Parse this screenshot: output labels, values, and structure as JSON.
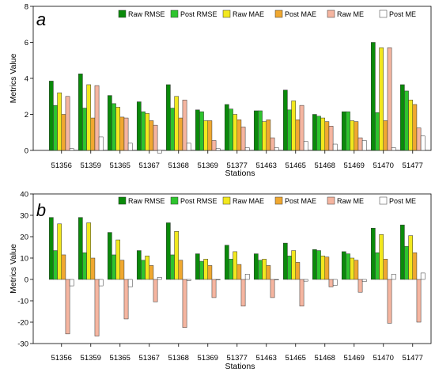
{
  "chart_data": [
    {
      "type": "bar",
      "panel_label": "a",
      "categories": [
        "51356",
        "51359",
        "51365",
        "51367",
        "51368",
        "51369",
        "51377",
        "51463",
        "51465",
        "51468",
        "51469",
        "51470",
        "51477"
      ],
      "xlabel": "Stations",
      "ylabel": "Metrics Value",
      "ylim": [
        0,
        8
      ],
      "yticks": [
        0,
        2,
        4,
        6,
        8
      ],
      "legend_position": "top-right",
      "grid": false,
      "series": [
        {
          "name": "Raw RMSE",
          "color": "#0a8a0a",
          "values": [
            3.85,
            4.25,
            3.05,
            2.7,
            3.65,
            2.25,
            2.55,
            2.2,
            3.35,
            2.0,
            2.15,
            6.0,
            3.65
          ]
        },
        {
          "name": "Post RMSE",
          "color": "#2ec42e",
          "values": [
            2.5,
            2.35,
            2.6,
            2.15,
            2.35,
            2.15,
            2.3,
            2.2,
            2.25,
            1.9,
            2.15,
            2.1,
            3.3
          ]
        },
        {
          "name": "Raw MAE",
          "color": "#f2e81e",
          "values": [
            3.2,
            3.65,
            2.4,
            2.05,
            3.0,
            1.65,
            2.0,
            1.6,
            2.75,
            1.8,
            1.65,
            5.7,
            2.8
          ]
        },
        {
          "name": "Post MAE",
          "color": "#f0a830",
          "values": [
            2.0,
            1.8,
            1.85,
            1.65,
            1.8,
            1.65,
            1.7,
            1.7,
            1.7,
            1.6,
            1.6,
            1.65,
            2.55
          ]
        },
        {
          "name": "Raw ME",
          "color": "#f5b5a0",
          "values": [
            3.0,
            3.6,
            1.8,
            1.4,
            2.8,
            0.55,
            1.3,
            0.7,
            2.5,
            1.35,
            0.7,
            5.7,
            1.25
          ]
        },
        {
          "name": "Post ME",
          "color": "#ffffff",
          "values": [
            0.1,
            0.75,
            0.4,
            -0.15,
            0.4,
            0.1,
            0.15,
            0.15,
            0.5,
            0.35,
            0.55,
            0.15,
            0.8
          ]
        }
      ]
    },
    {
      "type": "bar",
      "panel_label": "b",
      "categories": [
        "51356",
        "51359",
        "51365",
        "51367",
        "51368",
        "51369",
        "51377",
        "51463",
        "51465",
        "51468",
        "51469",
        "51470",
        "51477"
      ],
      "xlabel": "Stations",
      "ylabel": "Metrics Value",
      "ylim": [
        -30,
        40
      ],
      "yticks": [
        -30,
        -20,
        -10,
        0,
        10,
        20,
        30,
        40
      ],
      "legend_position": "top-right",
      "grid": false,
      "series": [
        {
          "name": "Raw RMSE",
          "color": "#0a8a0a",
          "values": [
            29,
            29,
            22,
            13.5,
            26.5,
            12,
            16,
            12,
            17,
            14,
            13,
            24,
            25.5
          ]
        },
        {
          "name": "Post RMSE",
          "color": "#2ec42e",
          "values": [
            13.5,
            12.5,
            11.5,
            9,
            11.5,
            8.5,
            9.5,
            9,
            11,
            13.5,
            12,
            12.5,
            15.5
          ]
        },
        {
          "name": "Raw MAE",
          "color": "#f2e81e",
          "values": [
            26,
            26.5,
            18.5,
            11,
            22.5,
            9.5,
            13,
            9.5,
            13.5,
            11,
            10,
            21,
            20.5
          ]
        },
        {
          "name": "Post MAE",
          "color": "#f0a830",
          "values": [
            11.5,
            10,
            9,
            6.5,
            9,
            6.5,
            7,
            6.5,
            8,
            10.5,
            9,
            9.5,
            12.5
          ]
        },
        {
          "name": "Raw ME",
          "color": "#f5b5a0",
          "values": [
            -25.5,
            -26.5,
            -18.5,
            -10.5,
            -22.5,
            -8.5,
            -12.5,
            -8.5,
            -12.5,
            -3.5,
            -6,
            -20.5,
            -20
          ]
        },
        {
          "name": "Post ME",
          "color": "#ffffff",
          "values": [
            -3,
            -3,
            -3.5,
            1,
            -0.5,
            -0.2,
            2.5,
            -0.2,
            -0.8,
            -2.8,
            -1,
            2.5,
            3
          ]
        }
      ]
    }
  ]
}
